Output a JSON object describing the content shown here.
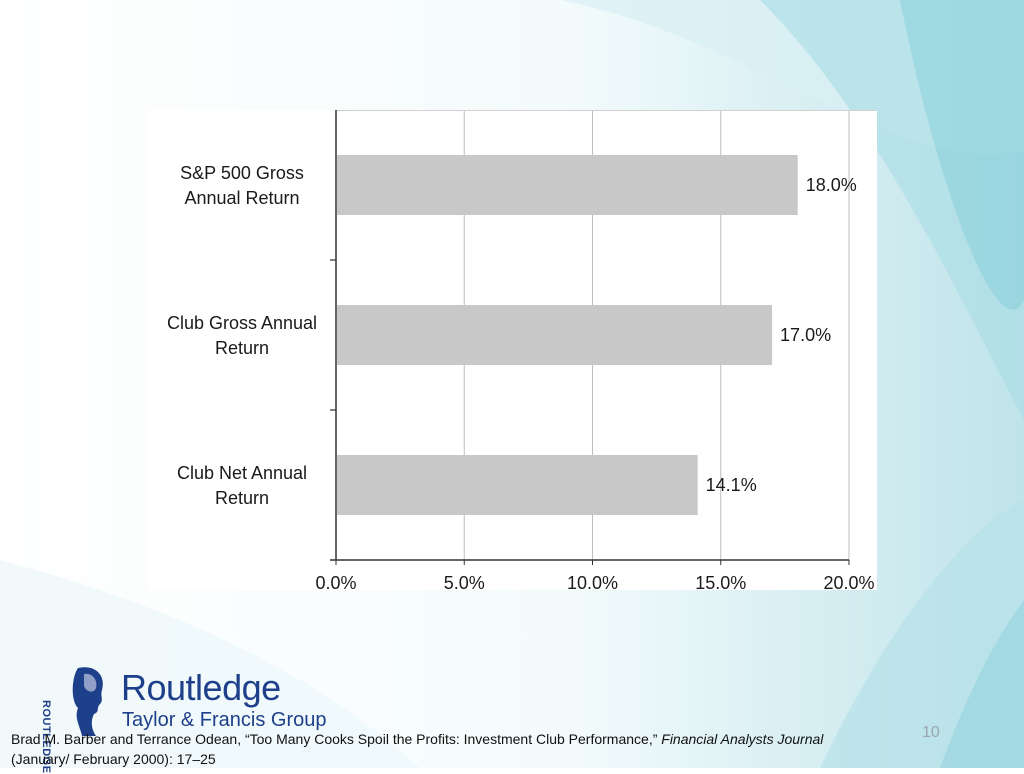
{
  "chart_data": {
    "type": "bar",
    "orientation": "horizontal",
    "categories": [
      "S&P 500 Gross Annual Return",
      "Club Gross Annual Return",
      "Club Net Annual Return"
    ],
    "category_lines": [
      [
        "S&P 500 Gross",
        "Annual Return"
      ],
      [
        "Club Gross Annual",
        "Return"
      ],
      [
        "Club Net Annual",
        "Return"
      ]
    ],
    "values": [
      18.0,
      17.0,
      14.1
    ],
    "data_labels": [
      "18.0%",
      "17.0%",
      "14.1%"
    ],
    "xticks": [
      0,
      5,
      10,
      15,
      20
    ],
    "xtick_labels": [
      "0.0%",
      "5.0%",
      "10.0%",
      "15.0%",
      "20.0%"
    ],
    "xlim": [
      0,
      20
    ],
    "grid": true,
    "bar_color": "#c8c8c8",
    "grid_color": "#bdbdbd"
  },
  "logo": {
    "name": "Routledge",
    "subtitle": "Taylor & Francis Group",
    "vertical_text": "ROUTLEDGE",
    "color": "#1e3f8a"
  },
  "citation": {
    "text": "Brad M. Barber and Terrance Odean, “Too Many Cooks Spoil the Profits: Investment Club Performance,” ",
    "journal": "Financial Analysts Journal",
    "line2": "(January/ February 2000): 17–25"
  },
  "slide_number": "10"
}
